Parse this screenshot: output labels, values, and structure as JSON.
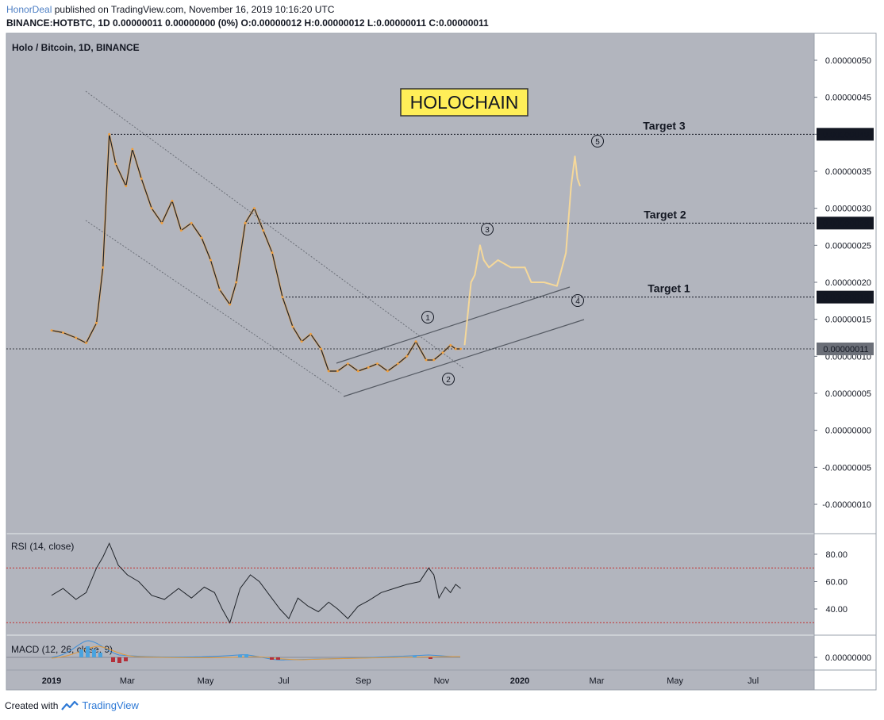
{
  "header": {
    "author": "HonorDeal",
    "published": "published on TradingView.com, November 16, 2019 10:16:20 UTC",
    "symbol_line": "BINANCE:HOTBTC, 1D  0.00000011 0.00000000 (0%) O:0.00000012 H:0.00000012 L:0.00000011 C:0.00000011"
  },
  "footer": {
    "created_with": "Created with",
    "brand": "TradingView"
  },
  "chart_data": {
    "type": "line",
    "title": "Holo / Bitcoin, 1D, BINANCE",
    "banner": "HOLOCHAIN",
    "y_unit": "BTC",
    "ylim": [
      -1.3e-07,
      5.2e-07
    ],
    "y_ticks": [
      "0.00000050",
      "0.00000045",
      "0.00000040",
      "0.00000035",
      "0.00000030",
      "0.00000025",
      "0.00000020",
      "0.00000015",
      "0.00000010",
      "0.00000005",
      "0.00000000",
      "-0.00000005",
      "-0.00000010"
    ],
    "x_ticks": [
      "2019",
      "Mar",
      "May",
      "Jul",
      "Sep",
      "Nov",
      "2020",
      "Mar",
      "May",
      "Jul"
    ],
    "price": {
      "x": [
        "2019-01-01",
        "2019-01-10",
        "2019-01-20",
        "2019-01-28",
        "2019-02-05",
        "2019-02-10",
        "2019-02-15",
        "2019-02-20",
        "2019-02-28",
        "2019-03-05",
        "2019-03-12",
        "2019-03-20",
        "2019-03-28",
        "2019-04-05",
        "2019-04-12",
        "2019-04-20",
        "2019-04-28",
        "2019-05-05",
        "2019-05-12",
        "2019-05-20",
        "2019-05-25",
        "2019-06-01",
        "2019-06-08",
        "2019-06-15",
        "2019-06-22",
        "2019-06-30",
        "2019-07-08",
        "2019-07-15",
        "2019-07-22",
        "2019-07-30",
        "2019-08-05",
        "2019-08-12",
        "2019-08-20",
        "2019-08-28",
        "2019-09-05",
        "2019-09-12",
        "2019-09-20",
        "2019-09-28",
        "2019-10-05",
        "2019-10-12",
        "2019-10-20",
        "2019-10-26",
        "2019-11-02",
        "2019-11-08",
        "2019-11-12",
        "2019-11-16"
      ],
      "y": [
        1.35e-07,
        1.32e-07,
        1.25e-07,
        1.18e-07,
        1.45e-07,
        2.2e-07,
        4e-07,
        3.6e-07,
        3.3e-07,
        3.8e-07,
        3.4e-07,
        3e-07,
        2.8e-07,
        3.1e-07,
        2.7e-07,
        2.8e-07,
        2.6e-07,
        2.3e-07,
        1.9e-07,
        1.7e-07,
        2e-07,
        2.8e-07,
        3e-07,
        2.7e-07,
        2.4e-07,
        1.8e-07,
        1.4e-07,
        1.2e-07,
        1.3e-07,
        1.1e-07,
        8e-08,
        8e-08,
        9e-08,
        8e-08,
        8.5e-08,
        9e-08,
        8e-08,
        9e-08,
        1e-07,
        1.2e-07,
        9.5e-08,
        9.5e-08,
        1.05e-07,
        1.15e-07,
        1.1e-07,
        1.1e-07
      ]
    },
    "projection": {
      "x": [
        "2019-11-19",
        "2019-11-24",
        "2019-11-27",
        "2019-12-01",
        "2019-12-04",
        "2019-12-08",
        "2019-12-15",
        "2019-12-25",
        "2020-01-05",
        "2020-01-10",
        "2020-01-20",
        "2020-01-30",
        "2020-02-03",
        "2020-02-06",
        "2020-02-10",
        "2020-02-13",
        "2020-02-15",
        "2020-02-17"
      ],
      "y": [
        1.15e-07,
        2e-07,
        2.1e-07,
        2.5e-07,
        2.3e-07,
        2.2e-07,
        2.3e-07,
        2.2e-07,
        2.2e-07,
        2e-07,
        2e-07,
        1.95e-07,
        2.2e-07,
        2.4e-07,
        3.3e-07,
        3.7e-07,
        3.4e-07,
        3.3e-07
      ]
    },
    "targets": [
      {
        "label": "Target 3",
        "value": "0.00000040"
      },
      {
        "label": "Target 2",
        "value": "0.00000028"
      },
      {
        "label": "Target 1",
        "value": "0.00000018"
      }
    ],
    "last_price_label": "0.00000011",
    "wave_labels": [
      "1",
      "2",
      "3",
      "4",
      "5"
    ],
    "rsi": {
      "label": "RSI (14, close)",
      "y_ticks": [
        "80.00",
        "60.00",
        "40.00"
      ],
      "bands": [
        70,
        30
      ],
      "x": [
        "2019-01-01",
        "2019-01-10",
        "2019-01-20",
        "2019-01-28",
        "2019-02-05",
        "2019-02-10",
        "2019-02-15",
        "2019-02-22",
        "2019-03-01",
        "2019-03-10",
        "2019-03-20",
        "2019-03-30",
        "2019-04-10",
        "2019-04-20",
        "2019-04-30",
        "2019-05-08",
        "2019-05-14",
        "2019-05-20",
        "2019-05-28",
        "2019-06-05",
        "2019-06-12",
        "2019-06-20",
        "2019-06-28",
        "2019-07-05",
        "2019-07-12",
        "2019-07-20",
        "2019-07-28",
        "2019-08-05",
        "2019-08-12",
        "2019-08-20",
        "2019-08-28",
        "2019-09-05",
        "2019-09-15",
        "2019-09-25",
        "2019-10-05",
        "2019-10-15",
        "2019-10-22",
        "2019-10-26",
        "2019-10-30",
        "2019-11-04",
        "2019-11-08",
        "2019-11-12",
        "2019-11-16"
      ],
      "y": [
        50,
        55,
        47,
        52,
        70,
        78,
        88,
        72,
        65,
        60,
        50,
        47,
        55,
        48,
        56,
        52,
        40,
        30,
        55,
        65,
        60,
        50,
        40,
        33,
        48,
        42,
        38,
        45,
        40,
        33,
        42,
        46,
        52,
        55,
        58,
        60,
        70,
        65,
        48,
        56,
        52,
        58,
        55
      ]
    },
    "macd": {
      "label": "MACD (12, 26, close, 9)",
      "y_ticks": [
        "0.00000000"
      ]
    }
  }
}
